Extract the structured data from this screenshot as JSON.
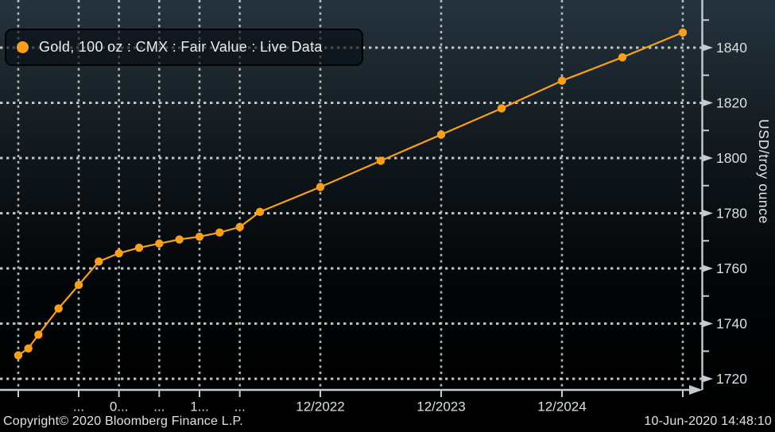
{
  "legend": {
    "label": "Gold, 100 oz : CMX : Fair Value : Live Data"
  },
  "footer": {
    "copyright": "Copyright© 2020 Bloomberg Finance L.P.",
    "timestamp": "10-Jun-2020 14:48:10"
  },
  "colors": {
    "series": "#f8a01c",
    "grid": "#d5d9d9",
    "axis": "#c5cbcf",
    "tick_label": "#d8e0e2",
    "axis_title": "#dfe6e8",
    "legend_text": "#e9eff1",
    "footer_text": "#dde3e5",
    "background_top": "#253341",
    "background_bottom": "#000000"
  },
  "chart_data": {
    "type": "line",
    "title": "",
    "ylabel": "USD/troy ounce",
    "xlabel": "",
    "grid": "dotted, both axes",
    "legend_position": "top-left",
    "y_axis": {
      "side": "right",
      "major_ticks": [
        1840,
        1820,
        1800,
        1780,
        1760,
        1740,
        1720
      ],
      "minor_ticks": [
        1850,
        1830,
        1810,
        1790,
        1770,
        1750,
        1730
      ],
      "ylim": [
        1716,
        1857
      ]
    },
    "x_axis": {
      "note": "x positions measured in months after the first data point (10-Jun-2020)",
      "ticks": [
        {
          "x_month": 0,
          "label": ""
        },
        {
          "x_month": 6,
          "label": "..."
        },
        {
          "x_month": 10,
          "label": "0..."
        },
        {
          "x_month": 14,
          "label": "..."
        },
        {
          "x_month": 18,
          "label": "1..."
        },
        {
          "x_month": 22,
          "label": "..."
        },
        {
          "x_month": 30,
          "label": "12/2022"
        },
        {
          "x_month": 42,
          "label": "12/2023"
        },
        {
          "x_month": 54,
          "label": "12/2024"
        },
        {
          "x_month": 66,
          "label": ""
        }
      ]
    },
    "series": [
      {
        "name": "Gold, 100 oz : CMX : Fair Value : Live Data",
        "marker": "circle",
        "points": [
          {
            "x_month": 0,
            "value": 1728.5
          },
          {
            "x_month": 1,
            "value": 1731
          },
          {
            "x_month": 2,
            "value": 1736
          },
          {
            "x_month": 4,
            "value": 1745.5
          },
          {
            "x_month": 6,
            "value": 1754
          },
          {
            "x_month": 8,
            "value": 1762.5
          },
          {
            "x_month": 10,
            "value": 1765.5
          },
          {
            "x_month": 12,
            "value": 1767.5
          },
          {
            "x_month": 14,
            "value": 1769
          },
          {
            "x_month": 16,
            "value": 1770.5
          },
          {
            "x_month": 18,
            "value": 1771.5
          },
          {
            "x_month": 20,
            "value": 1773
          },
          {
            "x_month": 22,
            "value": 1775
          },
          {
            "x_month": 24,
            "value": 1780.5
          },
          {
            "x_month": 30,
            "value": 1789.5
          },
          {
            "x_month": 36,
            "value": 1799
          },
          {
            "x_month": 42,
            "value": 1808.5
          },
          {
            "x_month": 48,
            "value": 1818
          },
          {
            "x_month": 54,
            "value": 1828
          },
          {
            "x_month": 60,
            "value": 1836.5
          },
          {
            "x_month": 66,
            "value": 1845.5
          }
        ]
      }
    ]
  }
}
